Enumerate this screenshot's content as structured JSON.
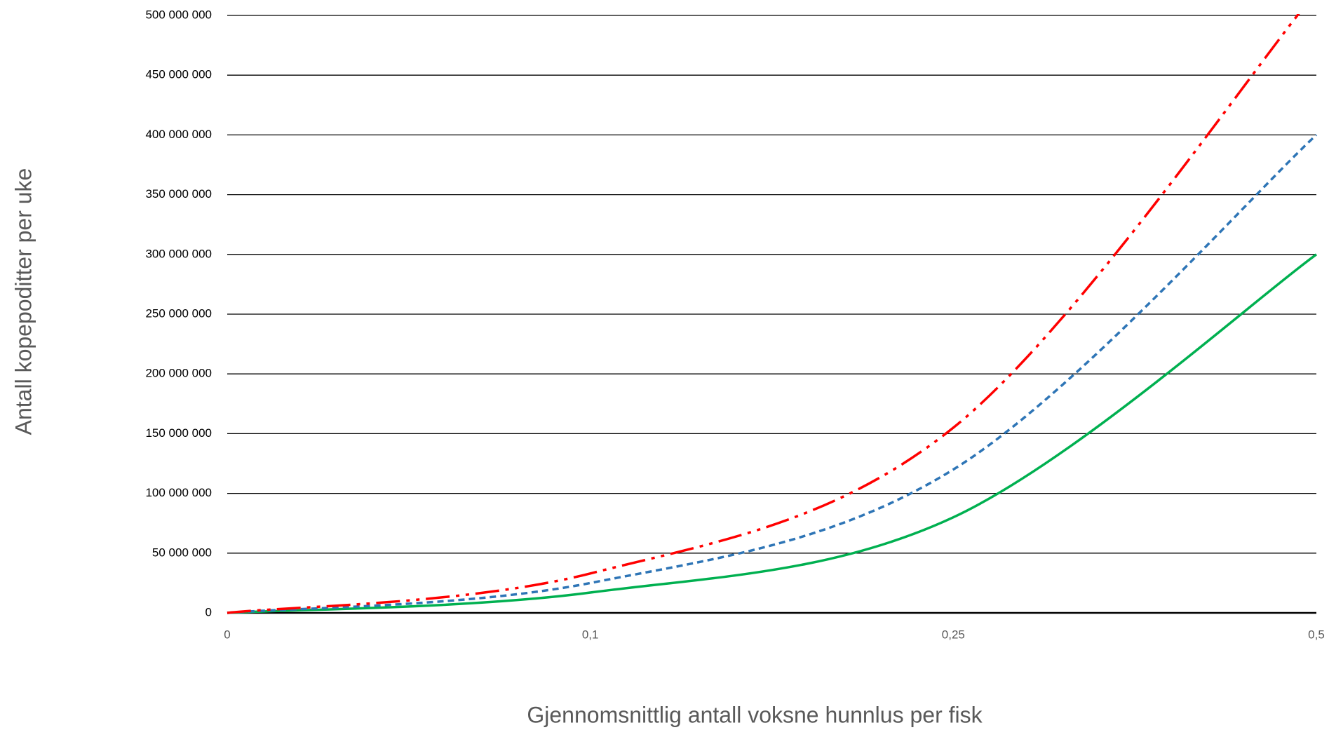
{
  "chart_data": {
    "type": "line",
    "x_label": "Gjennomsnittlig antall voksne hunnlus per fisk",
    "y_label": "Antall kopepoditter per uke",
    "categories": [
      "0",
      "0,1",
      "0,25",
      "0,5"
    ],
    "series": [
      {
        "color": "#ff0000",
        "dash": "34 9 5 9 5 9",
        "values": [
          0,
          33000000,
          155000000,
          520000000
        ]
      },
      {
        "color": "#2e75b6",
        "dash": "9 6",
        "values": [
          0,
          25000000,
          120000000,
          400000000
        ]
      },
      {
        "color": "#00b050",
        "dash": "none",
        "values": [
          0,
          17000000,
          80000000,
          300000000
        ]
      }
    ],
    "ylim": [
      0,
      500000000
    ],
    "yticks": [
      0,
      {
        "value": 50000000,
        "label": "50 000 000"
      },
      {
        "value": 100000000,
        "label": "100 000 000"
      },
      {
        "value": 150000000,
        "label": "150 000 000"
      },
      {
        "value": 200000000,
        "label": "200 000 000"
      },
      {
        "value": 250000000,
        "label": "250 000 000"
      },
      {
        "value": 300000000,
        "label": "300 000 000"
      },
      {
        "value": 350000000,
        "label": "350 000 000"
      },
      {
        "value": 400000000,
        "label": "400 000 000"
      },
      {
        "value": 450000000,
        "label": "450 000 000"
      },
      {
        "value": 500000000,
        "label": "500 000 000"
      }
    ],
    "grid": true
  }
}
